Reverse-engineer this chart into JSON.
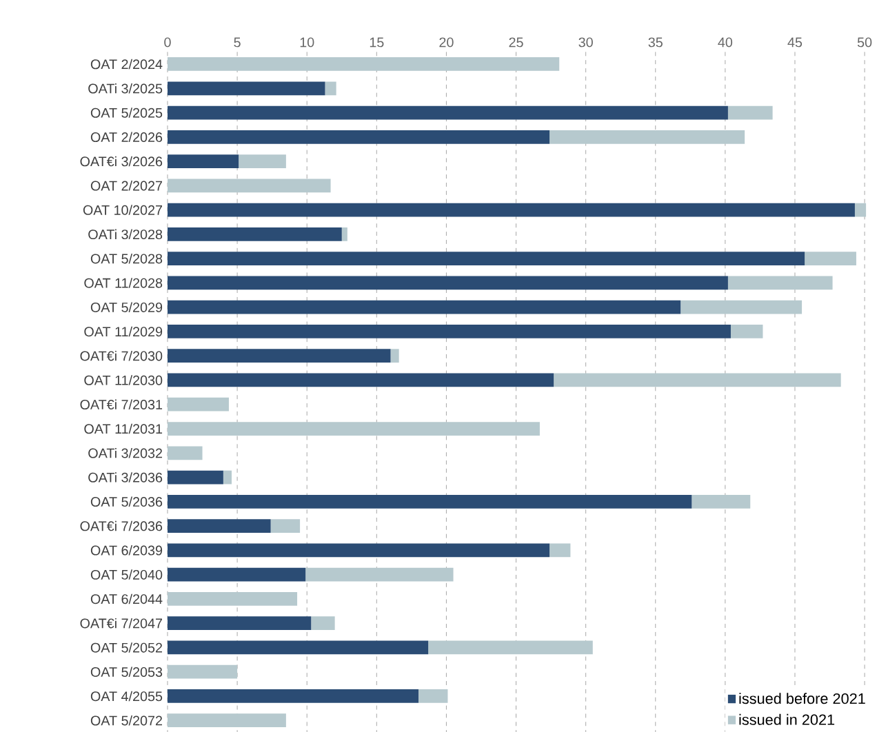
{
  "chart_data": {
    "type": "bar",
    "orientation": "horizontal",
    "stacked": true,
    "categories": [
      "OAT 2/2024",
      "OATi 3/2025",
      "OAT 5/2025",
      "OAT 2/2026",
      "OAT€i 3/2026",
      "OAT 2/2027",
      "OAT 10/2027",
      "OATi 3/2028",
      "OAT 5/2028",
      "OAT 11/2028",
      "OAT 5/2029",
      "OAT 11/2029",
      "OAT€i 7/2030",
      "OAT 11/2030",
      "OAT€i 7/2031",
      "OAT 11/2031",
      "OATi 3/2032",
      "OATi 3/2036",
      "OAT 5/2036",
      "OAT€i 7/2036",
      "OAT 6/2039",
      "OAT 5/2040",
      "OAT 6/2044",
      "OAT€i 7/2047",
      "OAT 5/2052",
      "OAT 5/2053",
      "OAT 4/2055",
      "OAT 5/2072"
    ],
    "series": [
      {
        "name": "issued before 2021",
        "color": "#2b4c74",
        "values": [
          0,
          11.3,
          40.2,
          27.4,
          5.1,
          0,
          49.3,
          12.5,
          45.7,
          40.2,
          36.8,
          40.4,
          16.0,
          27.7,
          0,
          0,
          0,
          4.0,
          37.6,
          7.4,
          27.4,
          9.9,
          0,
          10.3,
          18.7,
          0,
          18.0,
          0
        ]
      },
      {
        "name": "issued in 2021",
        "color": "#b6c9ce",
        "values": [
          28.1,
          0.8,
          3.2,
          14.0,
          3.4,
          11.7,
          0.8,
          0.4,
          3.7,
          7.5,
          8.7,
          2.3,
          0.6,
          20.6,
          4.4,
          26.7,
          2.5,
          0.6,
          4.2,
          2.1,
          1.5,
          10.6,
          9.3,
          1.7,
          11.8,
          5.0,
          2.1,
          8.5
        ]
      }
    ],
    "xlim": [
      0,
      50.5
    ],
    "xticks": [
      0,
      5,
      10,
      15,
      20,
      25,
      30,
      35,
      40,
      45,
      50
    ],
    "grid": "x",
    "legend": "bottom right"
  }
}
